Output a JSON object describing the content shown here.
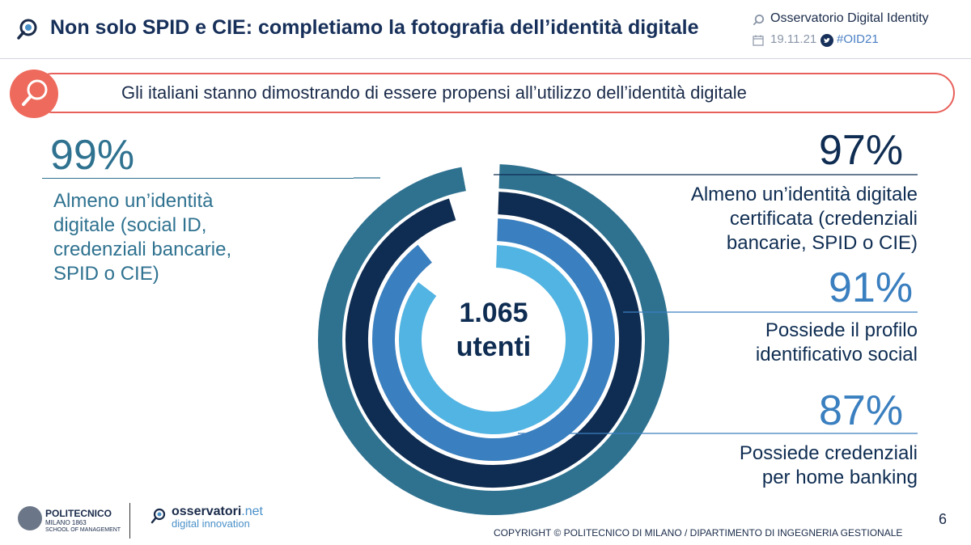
{
  "header": {
    "title": "Non solo SPID e CIE: completiamo la fotografia dell’identità digitale",
    "observatory": "Osservatorio Digital Identity",
    "date": "19.11.21",
    "hashtag": "#OID21"
  },
  "banner": {
    "text": "Gli italiani stanno dimostrando di essere propensi all’utilizzo dell’identità digitale"
  },
  "colors": {
    "ring1": "#2f7290",
    "ring2": "#0f2d52",
    "ring3": "#3a7fbf",
    "ring4": "#52b4e2",
    "accent": "#e8605a"
  },
  "center": {
    "count": "1.065",
    "unit": "utenti"
  },
  "chart_data": {
    "type": "radial-bar",
    "title": "",
    "max": 100,
    "series": [
      {
        "value": 99,
        "label": "99%",
        "description": "Almeno un’identità digitale (social ID, credenziali bancarie, SPID o CIE)"
      },
      {
        "value": 97,
        "label": "97%",
        "description": "Almeno un’identità digitale certificata (credenziali bancarie, SPID o CIE)"
      },
      {
        "value": 91,
        "label": "91%",
        "description": "Possiede il profilo identificativo social"
      },
      {
        "value": 87,
        "label": "87%",
        "description": "Possiede credenziali per home banking"
      }
    ]
  },
  "labels": {
    "l1_lines": [
      "Almeno un’identità",
      "digitale (social ID,",
      "credenziali bancarie,",
      "SPID o CIE)"
    ],
    "l2_lines": [
      "Almeno un’identità digitale",
      "certificata (credenziali",
      "bancarie, SPID o CIE)"
    ],
    "l3_lines": [
      "Possiede il profilo",
      "identificativo social"
    ],
    "l4_lines": [
      "Possiede credenziali",
      "per home banking"
    ]
  },
  "footer": {
    "polimi_name": "POLITECNICO",
    "polimi_city": "MILANO 1863",
    "polimi_school": "SCHOOL OF MANAGEMENT",
    "osserv_name": "osservatori",
    "osserv_net": ".net",
    "osserv_sub": "digital innovation",
    "page_number": "6",
    "copyright": "COPYRIGHT © POLITECNICO DI MILANO / DIPARTIMENTO DI INGEGNERIA GESTIONALE"
  }
}
